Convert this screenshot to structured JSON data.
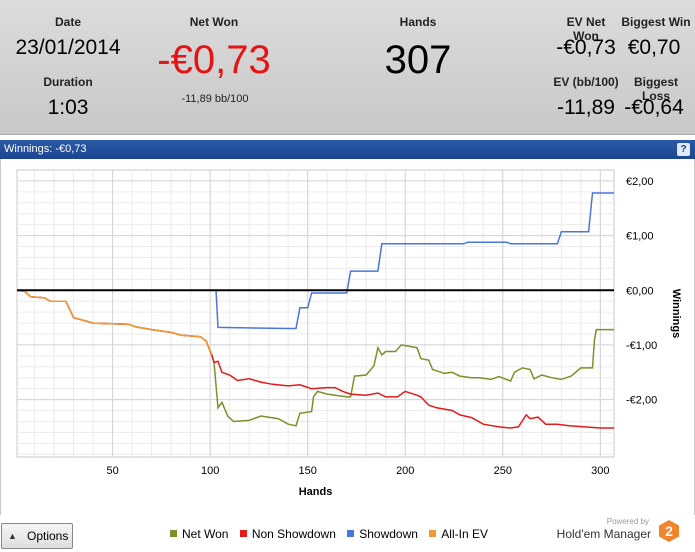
{
  "stats": {
    "date_label": "Date",
    "date_value": "23/01/2014",
    "duration_label": "Duration",
    "duration_value": "1:03",
    "net_won_label": "Net Won",
    "net_won_value": "-€0,73",
    "bb100_value": "-11,89 bb/100",
    "hands_label": "Hands",
    "hands_value": "307",
    "ev_net_won_label": "EV Net Won",
    "ev_net_won_value": "-€0,73",
    "biggest_win_label": "Biggest Win",
    "biggest_win_value": "€0,70",
    "ev_bb100_label": "EV (bb/100)",
    "ev_bb100_value": "-11,89",
    "biggest_loss_label": "Biggest Loss",
    "biggest_loss_value": "-€0,64"
  },
  "titlebar": {
    "text": "Winnings: -€0,73",
    "help_icon": "?"
  },
  "colors": {
    "net_won": "#7f8f2a",
    "non_showdown": "#e31b1b",
    "showdown": "#4a74e0",
    "all_in_ev": "#f09a35",
    "net_won_value": "#e41414"
  },
  "chart_data": {
    "type": "line",
    "xlabel": "Hands",
    "ylabel": "Winnings",
    "xlim": [
      1,
      307
    ],
    "ylim": [
      -3.05,
      2.2
    ],
    "x_ticks": [
      50,
      100,
      150,
      200,
      250,
      300
    ],
    "y_ticks": [
      2,
      1,
      0,
      -1,
      -2
    ],
    "y_tick_labels": [
      "€2,00",
      "€1,00",
      "€0,00",
      "-€1,00",
      "-€2,00"
    ],
    "grid": true,
    "zero_line": true,
    "series": [
      {
        "name": "Net Won",
        "color": "#7f8f2a",
        "points": [
          [
            1,
            0
          ],
          [
            5,
            -0.02
          ],
          [
            8,
            -0.12
          ],
          [
            15,
            -0.14
          ],
          [
            18,
            -0.2
          ],
          [
            26,
            -0.2
          ],
          [
            30,
            -0.5
          ],
          [
            40,
            -0.6
          ],
          [
            58,
            -0.62
          ],
          [
            62,
            -0.67
          ],
          [
            70,
            -0.72
          ],
          [
            80,
            -0.77
          ],
          [
            85,
            -0.82
          ],
          [
            95,
            -0.85
          ],
          [
            98,
            -0.93
          ],
          [
            101,
            -1.2
          ],
          [
            102,
            -1.32
          ],
          [
            104,
            -2.15
          ],
          [
            106,
            -2.05
          ],
          [
            109,
            -2.3
          ],
          [
            112,
            -2.4
          ],
          [
            120,
            -2.38
          ],
          [
            126,
            -2.3
          ],
          [
            135,
            -2.35
          ],
          [
            140,
            -2.45
          ],
          [
            144,
            -2.48
          ],
          [
            146,
            -2.25
          ],
          [
            152,
            -2.22
          ],
          [
            153,
            -1.95
          ],
          [
            155,
            -1.85
          ],
          [
            160,
            -1.9
          ],
          [
            170,
            -1.95
          ],
          [
            172,
            -1.95
          ],
          [
            174,
            -1.57
          ],
          [
            180,
            -1.55
          ],
          [
            184,
            -1.38
          ],
          [
            186,
            -1.05
          ],
          [
            188,
            -1.18
          ],
          [
            190,
            -1.12
          ],
          [
            195,
            -1.12
          ],
          [
            198,
            -1.0
          ],
          [
            206,
            -1.05
          ],
          [
            208,
            -1.25
          ],
          [
            212,
            -1.28
          ],
          [
            214,
            -1.45
          ],
          [
            220,
            -1.52
          ],
          [
            224,
            -1.5
          ],
          [
            228,
            -1.57
          ],
          [
            234,
            -1.6
          ],
          [
            238,
            -1.6
          ],
          [
            244,
            -1.63
          ],
          [
            248,
            -1.58
          ],
          [
            254,
            -1.66
          ],
          [
            256,
            -1.5
          ],
          [
            260,
            -1.42
          ],
          [
            264,
            -1.45
          ],
          [
            266,
            -1.62
          ],
          [
            270,
            -1.55
          ],
          [
            275,
            -1.6
          ],
          [
            280,
            -1.63
          ],
          [
            285,
            -1.57
          ],
          [
            290,
            -1.42
          ],
          [
            296,
            -1.42
          ],
          [
            297,
            -0.9
          ],
          [
            298,
            -0.72
          ],
          [
            307,
            -0.72
          ]
        ]
      },
      {
        "name": "Non Showdown",
        "color": "#e31b1b",
        "points": [
          [
            1,
            0
          ],
          [
            5,
            -0.02
          ],
          [
            8,
            -0.12
          ],
          [
            15,
            -0.14
          ],
          [
            18,
            -0.2
          ],
          [
            26,
            -0.2
          ],
          [
            30,
            -0.5
          ],
          [
            40,
            -0.6
          ],
          [
            58,
            -0.62
          ],
          [
            62,
            -0.67
          ],
          [
            70,
            -0.72
          ],
          [
            80,
            -0.77
          ],
          [
            85,
            -0.82
          ],
          [
            95,
            -0.85
          ],
          [
            98,
            -0.93
          ],
          [
            101,
            -1.2
          ],
          [
            102,
            -1.32
          ],
          [
            104,
            -1.3
          ],
          [
            106,
            -1.5
          ],
          [
            110,
            -1.55
          ],
          [
            114,
            -1.65
          ],
          [
            120,
            -1.62
          ],
          [
            126,
            -1.68
          ],
          [
            132,
            -1.72
          ],
          [
            140,
            -1.75
          ],
          [
            146,
            -1.73
          ],
          [
            152,
            -1.8
          ],
          [
            160,
            -1.78
          ],
          [
            164,
            -1.78
          ],
          [
            168,
            -1.85
          ],
          [
            172,
            -1.9
          ],
          [
            180,
            -1.92
          ],
          [
            186,
            -1.88
          ],
          [
            190,
            -1.95
          ],
          [
            196,
            -1.95
          ],
          [
            200,
            -1.85
          ],
          [
            206,
            -1.92
          ],
          [
            208,
            -1.95
          ],
          [
            212,
            -2.1
          ],
          [
            216,
            -2.15
          ],
          [
            224,
            -2.2
          ],
          [
            228,
            -2.28
          ],
          [
            234,
            -2.33
          ],
          [
            240,
            -2.45
          ],
          [
            248,
            -2.5
          ],
          [
            254,
            -2.52
          ],
          [
            258,
            -2.5
          ],
          [
            262,
            -2.28
          ],
          [
            264,
            -2.35
          ],
          [
            268,
            -2.32
          ],
          [
            272,
            -2.45
          ],
          [
            278,
            -2.45
          ],
          [
            284,
            -2.48
          ],
          [
            292,
            -2.5
          ],
          [
            300,
            -2.52
          ],
          [
            307,
            -2.52
          ]
        ]
      },
      {
        "name": "Showdown",
        "color": "#4a74e0",
        "points": [
          [
            1,
            0
          ],
          [
            103,
            0
          ],
          [
            104,
            -0.68
          ],
          [
            140,
            -0.7
          ],
          [
            144,
            -0.7
          ],
          [
            146,
            -0.32
          ],
          [
            150,
            -0.32
          ],
          [
            152,
            -0.05
          ],
          [
            170,
            -0.05
          ],
          [
            172,
            0.35
          ],
          [
            186,
            0.35
          ],
          [
            188,
            0.85
          ],
          [
            230,
            0.85
          ],
          [
            232,
            0.88
          ],
          [
            252,
            0.88
          ],
          [
            254,
            0.85
          ],
          [
            278,
            0.85
          ],
          [
            280,
            1.07
          ],
          [
            294,
            1.07
          ],
          [
            296,
            1.78
          ],
          [
            307,
            1.78
          ]
        ]
      },
      {
        "name": "All-In EV",
        "color": "#f09a35",
        "points": [
          [
            1,
            0
          ],
          [
            5,
            -0.02
          ],
          [
            8,
            -0.12
          ],
          [
            15,
            -0.14
          ],
          [
            18,
            -0.2
          ],
          [
            26,
            -0.2
          ],
          [
            30,
            -0.5
          ],
          [
            40,
            -0.6
          ],
          [
            58,
            -0.62
          ],
          [
            62,
            -0.67
          ],
          [
            70,
            -0.72
          ],
          [
            80,
            -0.77
          ],
          [
            85,
            -0.82
          ],
          [
            95,
            -0.85
          ],
          [
            98,
            -0.93
          ],
          [
            101,
            -1.18
          ]
        ]
      }
    ]
  },
  "footer": {
    "options_label": "Options",
    "options_arrow": "▲",
    "legend": [
      {
        "label": "Net Won",
        "color": "#7f8f2a"
      },
      {
        "label": "Non Showdown",
        "color": "#e31b1b"
      },
      {
        "label": "Showdown",
        "color": "#4a74e0"
      },
      {
        "label": "All-In EV",
        "color": "#f09a35"
      }
    ],
    "powered_by": "Powered by",
    "brand_name": "Hold'em Manager",
    "brand_logo_text": "2"
  }
}
